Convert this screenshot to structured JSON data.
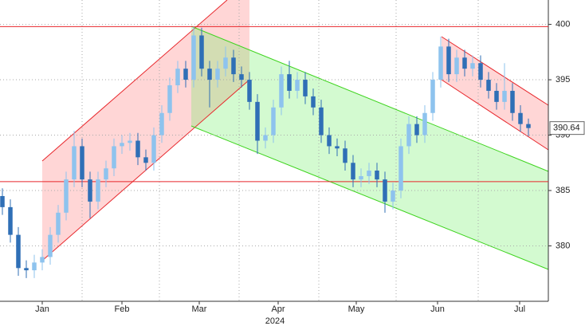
{
  "chart_data": {
    "type": "candlestick",
    "xlabel": "2024",
    "open": [
      384.5,
      383.5,
      381,
      378,
      377.8,
      378.5,
      379,
      381,
      383,
      386,
      389,
      386,
      384,
      386,
      387,
      389,
      389.3,
      389.5,
      388,
      387.5,
      390,
      392,
      394.5,
      396,
      395,
      399,
      396,
      395,
      396,
      397,
      395.5,
      395,
      393,
      389.5,
      390,
      392.5,
      395.5,
      394,
      395,
      393.5,
      392.5,
      390,
      389,
      388.8,
      387.5,
      386,
      386.3,
      386.8,
      386,
      384,
      385,
      389,
      391,
      390,
      392,
      395,
      398,
      395.5,
      397,
      396,
      396.5,
      395,
      394,
      393,
      394,
      392,
      391
    ],
    "high": [
      385.2,
      384.2,
      381.7,
      378.7,
      379.2,
      379.7,
      381.7,
      383.7,
      386.7,
      390.4,
      389.7,
      386.7,
      386.7,
      387.7,
      389.7,
      390,
      390.2,
      390.2,
      388.7,
      390.7,
      392.7,
      395.2,
      396.7,
      396.7,
      399.8,
      399.7,
      396.7,
      396.7,
      398,
      397.7,
      396.2,
      395.7,
      393.7,
      390.7,
      393.2,
      396.2,
      396.7,
      395.7,
      395.7,
      394.2,
      393.2,
      390.7,
      389.7,
      389.5,
      388.2,
      387,
      387.5,
      387.5,
      386.7,
      385.7,
      389.7,
      391.7,
      391.7,
      392.7,
      395.7,
      398.9,
      398.7,
      397.7,
      397.7,
      397.2,
      397.2,
      395.7,
      394.7,
      396.5,
      394.7,
      392.7,
      391.5
    ],
    "low": [
      382.8,
      380.3,
      377.3,
      377.1,
      377.1,
      377.8,
      378.3,
      380.3,
      382.3,
      385.3,
      385.3,
      382.5,
      383.3,
      385.3,
      386.3,
      388.3,
      388.6,
      387.3,
      386.8,
      386.8,
      389.3,
      391.3,
      393.8,
      394.3,
      394.3,
      395.3,
      392.5,
      394.3,
      395.3,
      394.8,
      394.3,
      392.3,
      388.3,
      388.8,
      389.3,
      391.8,
      393.3,
      393.3,
      392.8,
      391.8,
      389.3,
      388.3,
      388.1,
      386.8,
      385.3,
      385.3,
      385.6,
      385.3,
      383,
      383.3,
      384.3,
      388.3,
      389.3,
      389.3,
      391.3,
      394.3,
      394.8,
      394.8,
      395.3,
      395.3,
      394.3,
      393.3,
      392.3,
      392.3,
      391.3,
      390.3,
      389.9
    ],
    "close": [
      383.5,
      381,
      378,
      377.8,
      378.5,
      379,
      381,
      383,
      386,
      389,
      386,
      384,
      386,
      387,
      389,
      389.3,
      389.5,
      388,
      387.5,
      390,
      392,
      394.5,
      396,
      395,
      399,
      396,
      395,
      396,
      397,
      395.5,
      395,
      393,
      389.5,
      390,
      392.5,
      395.5,
      394,
      395,
      393.5,
      392.5,
      390,
      389,
      388.8,
      387.5,
      386,
      386.3,
      386.8,
      386,
      384,
      385,
      389,
      391,
      390,
      392,
      395,
      398,
      395.5,
      397,
      396,
      396.5,
      395,
      394,
      393,
      394,
      392,
      391,
      390.64
    ],
    "up_color": "#8ec3ee",
    "down_color": "#2f6fb6",
    "xlim": [
      -0.3,
      68.5
    ],
    "xticks": [
      {
        "value": 5,
        "label": "Jan"
      },
      {
        "value": 15,
        "label": "Feb"
      },
      {
        "value": 24.7,
        "label": "Mar"
      },
      {
        "value": 34.6,
        "label": "Apr"
      },
      {
        "value": 44.4,
        "label": "May"
      },
      {
        "value": 54.6,
        "label": "Jun"
      },
      {
        "value": 64.9,
        "label": "Jul"
      }
    ],
    "ylim": [
      375,
      402.2
    ],
    "yticks": [
      380,
      385,
      390,
      395,
      400
    ],
    "grid": true,
    "hlines": [
      399.8,
      385.8
    ],
    "hline_color": "#e8262b",
    "last_value": 390.64
  }
}
